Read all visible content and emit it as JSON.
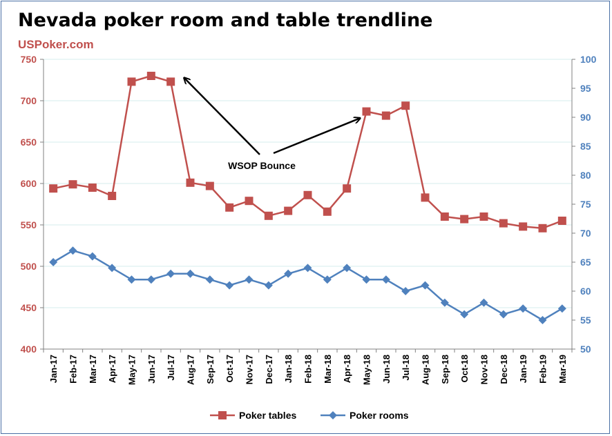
{
  "title": "Nevada poker room and table trendline",
  "brand": "USPoker.com",
  "chart_data": {
    "type": "line",
    "title": "Nevada poker room and table trendline",
    "categories": [
      "Jan-17",
      "Feb-17",
      "Mar-17",
      "Apr-17",
      "May-17",
      "Jun-17",
      "Jul-17",
      "Aug-17",
      "Sep-17",
      "Oct-17",
      "Nov-17",
      "Dec-17",
      "Jan-18",
      "Feb-18",
      "Mar-18",
      "Apr-18",
      "May-18",
      "Jun-18",
      "Jul-18",
      "Aug-18",
      "Sep-18",
      "Oct-18",
      "Nov-18",
      "Dec-18",
      "Jan-19",
      "Feb-19",
      "Mar-19"
    ],
    "y_left": {
      "min": 400,
      "max": 750,
      "ticks": [
        400,
        450,
        500,
        550,
        600,
        650,
        700,
        750
      ],
      "color": "#c0504d"
    },
    "y_right": {
      "min": 50,
      "max": 100,
      "ticks": [
        50,
        55,
        60,
        65,
        70,
        75,
        80,
        85,
        90,
        95,
        100
      ],
      "color": "#4f81bd"
    },
    "grid": true,
    "legend_position": "bottom",
    "series": [
      {
        "name": "Poker tables",
        "axis": "left",
        "color": "#c0504d",
        "marker": "square",
        "values": [
          594,
          599,
          595,
          585,
          723,
          730,
          723,
          601,
          597,
          571,
          579,
          561,
          567,
          586,
          566,
          594,
          687,
          682,
          694,
          583,
          560,
          557,
          560,
          552,
          548,
          546,
          555
        ]
      },
      {
        "name": "Poker rooms",
        "axis": "right",
        "color": "#4f81bd",
        "marker": "diamond",
        "values": [
          65,
          67,
          66,
          64,
          62,
          62,
          63,
          63,
          62,
          61,
          62,
          61,
          63,
          64,
          62,
          64,
          62,
          62,
          60,
          61,
          58,
          56,
          58,
          56,
          57,
          55,
          57
        ]
      }
    ],
    "annotations": [
      {
        "text": "WSOP Bounce"
      }
    ]
  }
}
